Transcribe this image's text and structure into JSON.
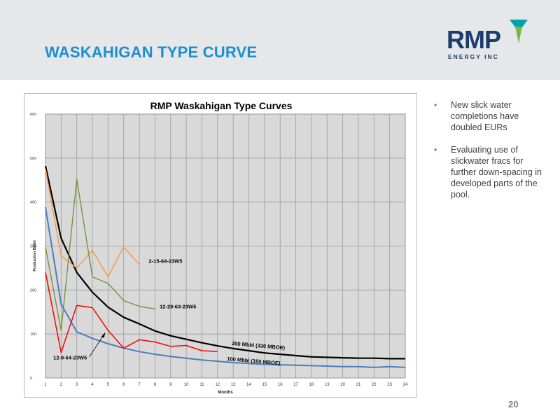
{
  "slide": {
    "title": "WASKAHIGAN TYPE CURVE",
    "page_number": "20"
  },
  "logo": {
    "name": "RMP",
    "subtitle": "ENERGY INC"
  },
  "bullets": [
    "New slick water completions have doubled EURs",
    "Evaluating use of slickwater fracs for further down-spacing in developed parts of the pool."
  ],
  "colors": {
    "title_blue": "#1b8fd0",
    "logo_navy": "#1d3c6e",
    "logo_teal": "#00a3ad",
    "logo_green": "#7ab648"
  },
  "chart_data": {
    "type": "line",
    "title": "RMP Waskahigan Type Curves",
    "xlabel": "Months",
    "ylabel": "Production Bbl/d",
    "xlim": [
      1,
      24
    ],
    "ylim": [
      0,
      600
    ],
    "xticks": [
      1,
      2,
      3,
      4,
      5,
      6,
      7,
      8,
      9,
      10,
      11,
      12,
      13,
      14,
      15,
      16,
      17,
      18,
      19,
      20,
      21,
      22,
      23,
      24
    ],
    "yticks": [
      0,
      100,
      200,
      300,
      400,
      500,
      600
    ],
    "grid": true,
    "series": [
      {
        "name": "200 Mbbl (320 MBOE)",
        "color": "#000000",
        "x": [
          1,
          2,
          3,
          4,
          5,
          6,
          7,
          8,
          9,
          10,
          11,
          12,
          13,
          14,
          15,
          16,
          17,
          18,
          19,
          20,
          21,
          22,
          23,
          24
        ],
        "values": [
          482,
          318,
          240,
          195,
          161,
          138,
          123,
          107,
          96,
          88,
          80,
          73,
          67,
          62,
          57,
          54,
          51,
          48,
          47,
          46,
          45,
          45,
          44,
          44
        ]
      },
      {
        "name": "100 Mbbl (160 MBOE)",
        "color": "#4a7ebb",
        "x": [
          1,
          2,
          3,
          4,
          5,
          6,
          7,
          8,
          9,
          10,
          11,
          12,
          13,
          14,
          15,
          16,
          17,
          18,
          19,
          20,
          21,
          22,
          23,
          24
        ],
        "values": [
          388,
          168,
          105,
          90,
          78,
          68,
          60,
          54,
          49,
          45,
          41,
          38,
          35,
          33,
          31,
          30,
          29,
          28,
          27,
          26,
          26,
          24,
          26,
          24
        ]
      },
      {
        "name": "2-15-64-23W5",
        "color": "#f79646",
        "x": [
          1,
          2,
          3,
          4,
          5,
          6,
          7
        ],
        "values": [
          475,
          278,
          250,
          290,
          230,
          298,
          258
        ]
      },
      {
        "name": "12-29-63-23W5",
        "color": "#77933c",
        "x": [
          1,
          2,
          3,
          4,
          5,
          6,
          7,
          8
        ],
        "values": [
          298,
          108,
          452,
          230,
          215,
          176,
          163,
          157
        ]
      },
      {
        "name": "12-9-64-23W5",
        "color": "#ff0000",
        "x": [
          1,
          2,
          3,
          4,
          5,
          6,
          7,
          8,
          9,
          10,
          11,
          12
        ],
        "values": [
          240,
          58,
          165,
          160,
          108,
          68,
          87,
          82,
          72,
          74,
          62,
          60
        ]
      }
    ]
  }
}
